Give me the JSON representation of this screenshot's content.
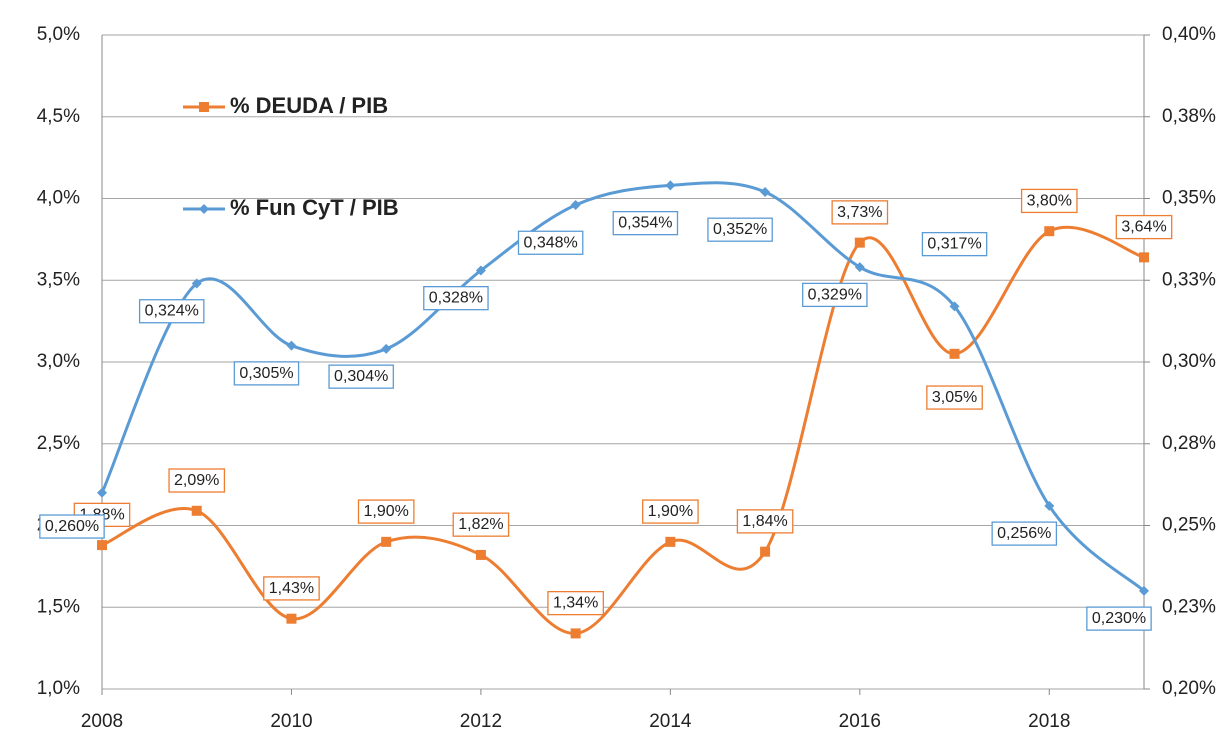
{
  "chart_data": {
    "type": "line",
    "x": [
      2008,
      2009,
      2010,
      2011,
      2012,
      2013,
      2014,
      2015,
      2016,
      2017,
      2018,
      2019
    ],
    "xlim": [
      2008,
      2019
    ],
    "xticks": [
      2008,
      2010,
      2012,
      2014,
      2016,
      2018
    ],
    "ylim": [
      1.0,
      5.0
    ],
    "yticks": [
      {
        "value": 1.0,
        "label": "1,0%"
      },
      {
        "value": 1.5,
        "label": "1,5%"
      },
      {
        "value": 2.0,
        "label": "2,0%"
      },
      {
        "value": 2.5,
        "label": "2,5%"
      },
      {
        "value": 3.0,
        "label": "3,0%"
      },
      {
        "value": 3.5,
        "label": "3,5%"
      },
      {
        "value": 4.0,
        "label": "4,0%"
      },
      {
        "value": 4.5,
        "label": "4,5%"
      },
      {
        "value": 5.0,
        "label": "5,0%"
      }
    ],
    "y2lim": [
      0.2,
      0.4
    ],
    "y2ticks": [
      {
        "value": 0.2,
        "label": "0,20%"
      },
      {
        "value": 0.225,
        "label": "0,23%"
      },
      {
        "value": 0.25,
        "label": "0,25%"
      },
      {
        "value": 0.275,
        "label": "0,28%"
      },
      {
        "value": 0.3,
        "label": "0,30%"
      },
      {
        "value": 0.325,
        "label": "0,33%"
      },
      {
        "value": 0.35,
        "label": "0,35%"
      },
      {
        "value": 0.375,
        "label": "0,38%"
      },
      {
        "value": 0.4,
        "label": "0,40%"
      }
    ],
    "grid": true,
    "legend": "upper left",
    "series": [
      {
        "name": "% DEUDA / PIB",
        "color": "#ed7d31",
        "values": [
          1.88,
          2.09,
          1.43,
          1.9,
          1.82,
          1.34,
          1.9,
          1.84,
          3.73,
          3.05,
          3.8,
          3.64
        ],
        "value_labels": [
          "1,88%",
          "2,09%",
          "1,43%",
          "1,90%",
          "1,82%",
          "1,34%",
          "1,90%",
          "1,84%",
          "3,73%",
          "3,05%",
          "3,80%",
          "3,64%"
        ]
      },
      {
        "name": "% Fun CyT / PIB",
        "color": "#5b9bd5",
        "axis": "y2",
        "values": [
          0.26,
          0.324,
          0.305,
          0.304,
          0.328,
          0.348,
          0.354,
          0.352,
          0.329,
          0.317,
          0.256,
          0.23
        ],
        "value_labels": [
          "0,260%",
          "0,324%",
          "0,305%",
          "0,304%",
          "0,328%",
          "0,348%",
          "0,354%",
          "0,352%",
          "0,329%",
          "0,317%",
          "0,256%",
          "0,230%"
        ]
      }
    ]
  }
}
